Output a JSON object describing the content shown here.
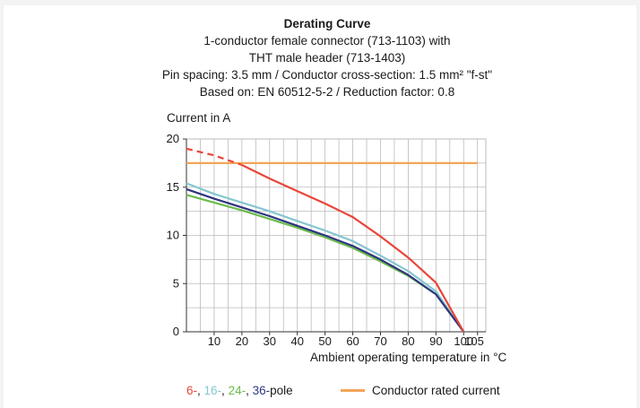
{
  "title": "Derating Curve",
  "subtitle_lines": [
    "1-conductor female connector (713-1103) with",
    "THT male header (713-1403)",
    "Pin spacing: 3.5 mm / Conductor cross-section: 1.5 mm² \"f-st\"",
    "Based on: EN 60512-5-2 / Reduction factor: 0.8"
  ],
  "colors": {
    "pole6": "#e8463a",
    "pole16": "#86c6d0",
    "pole24": "#6cbb4c",
    "pole36": "#2e3580",
    "rated": "#f4a55a",
    "grid": "#bbbbbb"
  },
  "legend": {
    "poles": [
      {
        "text": "6-",
        "color": "#e8463a"
      },
      {
        "text": ", ",
        "color": "#1a1a1a"
      },
      {
        "text": "16-",
        "color": "#86c6d0"
      },
      {
        "text": ", ",
        "color": "#1a1a1a"
      },
      {
        "text": "24-",
        "color": "#6cbb4c"
      },
      {
        "text": ", ",
        "color": "#1a1a1a"
      },
      {
        "text": "36-",
        "color": "#2e3580"
      },
      {
        "text": "pole",
        "color": "#1a1a1a"
      }
    ],
    "rated_label": "Conductor rated current"
  },
  "chart_data": {
    "type": "line",
    "title": "Derating Curve",
    "ylabel": "Current in A",
    "xlabel": "Ambient operating temperature in °C",
    "xlim": [
      0,
      105
    ],
    "ylim": [
      0,
      20
    ],
    "x_ticks": [
      10,
      20,
      30,
      40,
      50,
      60,
      70,
      80,
      90,
      100,
      105
    ],
    "y_ticks": [
      0,
      5,
      10,
      15,
      20
    ],
    "grid": true,
    "legend_position": "bottom",
    "series": [
      {
        "name": "6-pole",
        "color": "#e8463a",
        "dashed_until_x": 20,
        "x": [
          0,
          10,
          20,
          30,
          40,
          50,
          60,
          70,
          80,
          90,
          100
        ],
        "y": [
          19.0,
          18.3,
          17.3,
          15.9,
          14.6,
          13.3,
          11.9,
          9.9,
          7.7,
          5.1,
          0
        ]
      },
      {
        "name": "16-pole",
        "color": "#86c6d0",
        "x": [
          0,
          10,
          20,
          30,
          40,
          50,
          60,
          70,
          80,
          90,
          100
        ],
        "y": [
          15.4,
          14.3,
          13.4,
          12.5,
          11.5,
          10.5,
          9.4,
          7.9,
          6.3,
          4.2,
          0
        ]
      },
      {
        "name": "24-pole",
        "color": "#6cbb4c",
        "x": [
          0,
          10,
          20,
          30,
          40,
          50,
          60,
          70,
          80,
          90,
          100
        ],
        "y": [
          14.2,
          13.4,
          12.6,
          11.7,
          10.8,
          9.8,
          8.7,
          7.3,
          5.8,
          3.9,
          0
        ]
      },
      {
        "name": "36-pole",
        "color": "#2e3580",
        "x": [
          0,
          10,
          20,
          30,
          40,
          50,
          60,
          70,
          80,
          90,
          100
        ],
        "y": [
          14.8,
          13.8,
          12.9,
          12.0,
          11.0,
          10.0,
          8.9,
          7.5,
          5.9,
          3.9,
          0
        ]
      },
      {
        "name": "Conductor rated current",
        "color": "#f4a55a",
        "x": [
          0,
          105
        ],
        "y": [
          17.5,
          17.5
        ]
      }
    ]
  }
}
